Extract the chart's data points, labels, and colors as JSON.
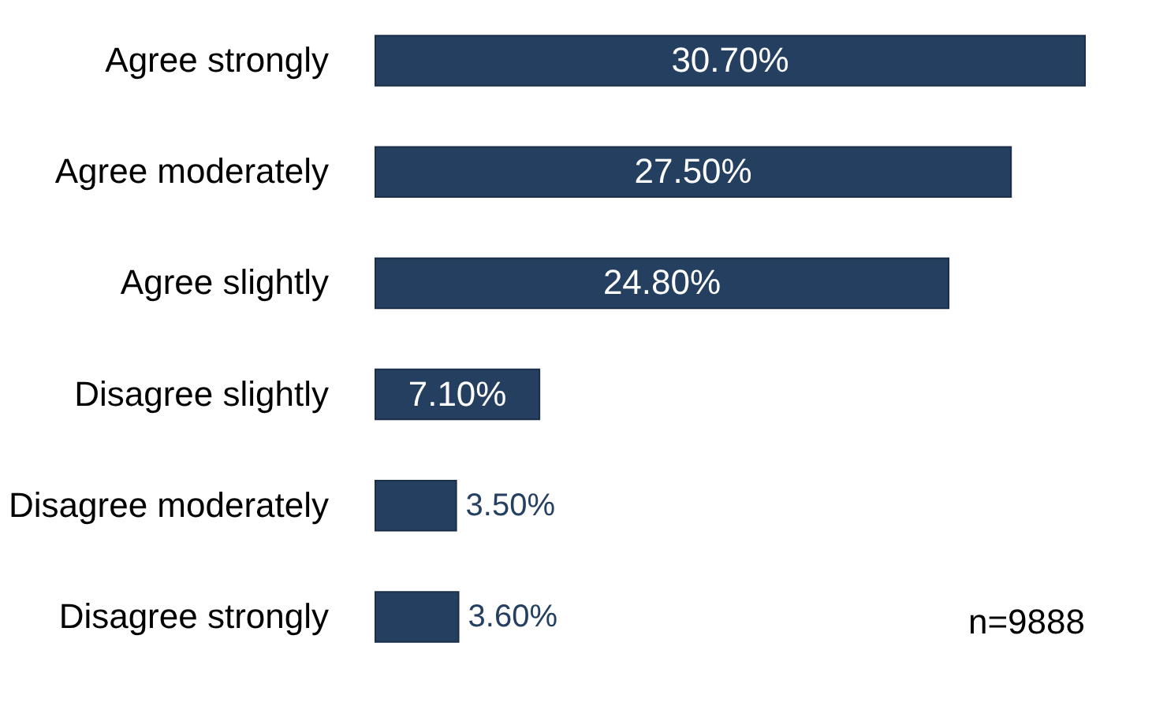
{
  "chart_data": {
    "type": "bar",
    "orientation": "horizontal",
    "categories": [
      "Agree strongly",
      "Agree moderately",
      "Agree slightly",
      "Disagree slightly",
      "Disagree moderately",
      "Disagree strongly"
    ],
    "values": [
      30.7,
      27.5,
      24.8,
      7.1,
      3.5,
      3.6
    ],
    "color": "#243f60",
    "value_labels": [
      "30.70%",
      "27.50%",
      "24.80%",
      "7.10%",
      "3.50%",
      "3.60%"
    ],
    "annotations": [
      "n=9888"
    ]
  }
}
